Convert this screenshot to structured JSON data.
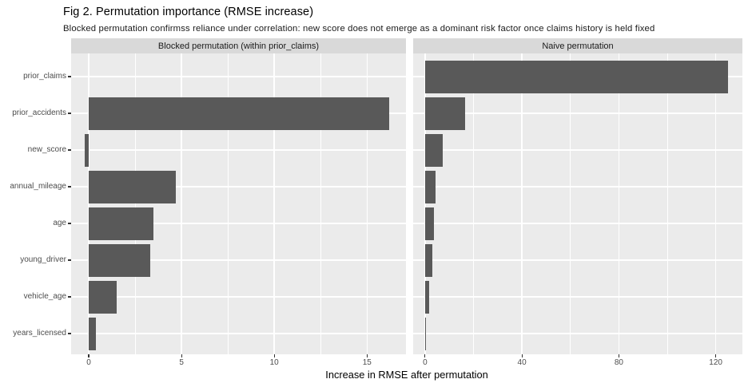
{
  "figure": {
    "title": "Fig 2. Permutation importance (RMSE increase)",
    "subtitle": "Blocked permutation confirmss reliance under correlation: new score does not emerge as a dominant risk factor once claims history is held fixed",
    "xlabel": "Increase in RMSE after permutation"
  },
  "chart_data": {
    "type": "bar",
    "orientation": "horizontal",
    "title": "Fig 2. Permutation importance (RMSE increase)",
    "subtitle": "Blocked permutation confirmss reliance under correlation: new score does not emerge as a dominant risk factor once claims history is held fixed",
    "xlabel": "Increase in RMSE after permutation",
    "ylabel": "",
    "legend_position": "none",
    "grid": true,
    "categories": [
      "prior_claims",
      "prior_accidents",
      "new_score",
      "annual_mileage",
      "age",
      "young_driver",
      "vehicle_age",
      "years_licensed"
    ],
    "facets": [
      {
        "label": "Blocked permutation (within prior_claims)",
        "values": [
          0,
          16.2,
          -0.2,
          4.7,
          3.5,
          3.3,
          1.5,
          0.4
        ],
        "xticks": [
          0,
          5,
          10,
          15
        ],
        "minor_ticks": [
          2.5,
          7.5,
          12.5
        ],
        "xlim": [
          -0.95,
          17.1
        ]
      },
      {
        "label": "Naive permutation",
        "values": [
          125,
          16.6,
          7.3,
          4.4,
          3.8,
          3.1,
          1.8,
          0.3
        ],
        "xticks": [
          0,
          40,
          80,
          120
        ],
        "minor_ticks": [
          20,
          60,
          100
        ],
        "xlim": [
          -4.9,
          131
        ]
      }
    ],
    "colors": {
      "bar": "#595959",
      "panel_background": "#ebebeb",
      "strip_background": "#d9d9d9",
      "gridline": "#ffffff",
      "tick_text": "#4d4d4d",
      "text": "#1a1a1a"
    }
  }
}
